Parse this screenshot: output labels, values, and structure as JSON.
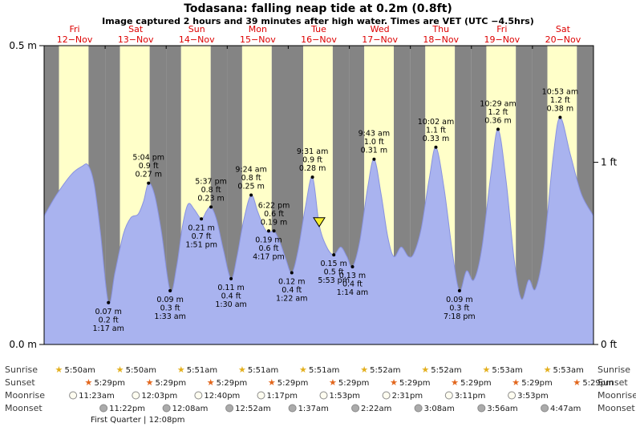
{
  "chart_data": {
    "type": "area",
    "title": "Todasana: falling  neap tide at 0.2m (0.8ft)",
    "subtitle": "Image captured 2 hours and 39 minutes after high water. Times are VET (UTC −4.5hrs)",
    "ylim_m": [
      0,
      0.5
    ],
    "axis": {
      "left": [
        {
          "m": 0.5,
          "label": "0.5 m"
        },
        {
          "m": 0.0,
          "label": "0.0 m"
        }
      ],
      "right": [
        {
          "ft": 1,
          "label": "1 ft"
        },
        {
          "ft": 0,
          "label": "0 ft"
        }
      ]
    },
    "days": [
      {
        "name": "Fri",
        "date": "12−Nov"
      },
      {
        "name": "Sat",
        "date": "13−Nov"
      },
      {
        "name": "Sun",
        "date": "14−Nov"
      },
      {
        "name": "Mon",
        "date": "15−Nov"
      },
      {
        "name": "Tue",
        "date": "16−Nov"
      },
      {
        "name": "Wed",
        "date": "17−Nov"
      },
      {
        "name": "Thu",
        "date": "18−Nov"
      },
      {
        "name": "Fri",
        "date": "19−Nov"
      },
      {
        "name": "Sat",
        "date": "20−Nov"
      }
    ],
    "tide_events": [
      {
        "kind": "low",
        "day": 1,
        "time": "1:17 am",
        "m": "0.07",
        "ft": "0.2"
      },
      {
        "kind": "high",
        "day": 1,
        "time": "5:04 pm",
        "m": "0.27",
        "ft": "0.9"
      },
      {
        "kind": "low",
        "day": 2,
        "time": "1:33 am",
        "m": "0.09",
        "ft": "0.3"
      },
      {
        "kind": "low",
        "day": 2,
        "time": "1:51 pm",
        "m": "0.21",
        "ft": "0.7"
      },
      {
        "kind": "high",
        "day": 2,
        "time": "5:37 pm",
        "m": "0.23",
        "ft": "0.8"
      },
      {
        "kind": "low",
        "day": 3,
        "time": "1:30 am",
        "m": "0.11",
        "ft": "0.4"
      },
      {
        "kind": "high",
        "day": 3,
        "time": "9:24 am",
        "m": "0.25",
        "ft": "0.8"
      },
      {
        "kind": "low",
        "day": 3,
        "time": "4:17 pm",
        "m": "0.19",
        "ft": "0.6"
      },
      {
        "kind": "high",
        "day": 3,
        "time": "6:22 pm",
        "m": "0.19",
        "ft": "0.6"
      },
      {
        "kind": "low",
        "day": 4,
        "time": "1:22 am",
        "m": "0.12",
        "ft": "0.4"
      },
      {
        "kind": "high",
        "day": 4,
        "time": "9:31 am",
        "m": "0.28",
        "ft": "0.9"
      },
      {
        "kind": "low",
        "day": 4,
        "time": "5:53 pm",
        "m": "0.15",
        "ft": "0.5"
      },
      {
        "kind": "low",
        "day": 5,
        "time": "1:14 am",
        "m": "0.13",
        "ft": "0.4"
      },
      {
        "kind": "high",
        "day": 5,
        "time": "9:43 am",
        "m": "0.31",
        "ft": "1.0"
      },
      {
        "kind": "high",
        "day": 6,
        "time": "10:02 am",
        "m": "0.33",
        "ft": "1.1"
      },
      {
        "kind": "low",
        "day": 6,
        "time": "7:18 pm",
        "m": "0.09",
        "ft": "0.3"
      },
      {
        "kind": "high",
        "day": 7,
        "time": "10:29 am",
        "m": "0.36",
        "ft": "1.2"
      },
      {
        "kind": "high",
        "day": 8,
        "time": "10:53 am",
        "m": "0.38",
        "ft": "1.2"
      }
    ],
    "curve_day_m": [
      [
        0.0,
        0.215
      ],
      [
        0.2,
        0.25
      ],
      [
        0.45,
        0.285
      ],
      [
        0.62,
        0.298
      ],
      [
        0.72,
        0.3
      ],
      [
        0.82,
        0.268
      ],
      [
        0.92,
        0.19
      ],
      [
        1.0535,
        0.07
      ],
      [
        1.16,
        0.12
      ],
      [
        1.3,
        0.185
      ],
      [
        1.42,
        0.212
      ],
      [
        1.54,
        0.218
      ],
      [
        1.63,
        0.24
      ],
      [
        1.7111,
        0.27
      ],
      [
        1.81,
        0.25
      ],
      [
        1.92,
        0.19
      ],
      [
        2.0646,
        0.09
      ],
      [
        2.17,
        0.13
      ],
      [
        2.27,
        0.2
      ],
      [
        2.36,
        0.235
      ],
      [
        2.46,
        0.226
      ],
      [
        2.5771,
        0.21
      ],
      [
        2.66,
        0.223
      ],
      [
        2.734,
        0.23
      ],
      [
        2.83,
        0.207
      ],
      [
        2.94,
        0.157
      ],
      [
        3.0625,
        0.11
      ],
      [
        3.16,
        0.147
      ],
      [
        3.27,
        0.208
      ],
      [
        3.3917,
        0.25
      ],
      [
        3.5,
        0.222
      ],
      [
        3.6,
        0.196
      ],
      [
        3.6785,
        0.187
      ],
      [
        3.7653,
        0.19
      ],
      [
        3.86,
        0.172
      ],
      [
        3.96,
        0.143
      ],
      [
        4.0569,
        0.12
      ],
      [
        4.16,
        0.157
      ],
      [
        4.28,
        0.23
      ],
      [
        4.3965,
        0.28
      ],
      [
        4.5069,
        0.2
      ],
      [
        4.63,
        0.163
      ],
      [
        4.7451,
        0.15
      ],
      [
        4.86,
        0.163
      ],
      [
        4.96,
        0.147
      ],
      [
        5.0514,
        0.13
      ],
      [
        5.17,
        0.172
      ],
      [
        5.3,
        0.262
      ],
      [
        5.4049,
        0.31
      ],
      [
        5.52,
        0.252
      ],
      [
        5.63,
        0.18
      ],
      [
        5.73,
        0.147
      ],
      [
        5.85,
        0.163
      ],
      [
        5.97,
        0.147
      ],
      [
        6.06,
        0.153
      ],
      [
        6.18,
        0.195
      ],
      [
        6.31,
        0.278
      ],
      [
        6.4181,
        0.33
      ],
      [
        6.55,
        0.263
      ],
      [
        6.69,
        0.153
      ],
      [
        6.8042,
        0.09
      ],
      [
        6.92,
        0.123
      ],
      [
        7.04,
        0.108
      ],
      [
        7.17,
        0.16
      ],
      [
        7.32,
        0.285
      ],
      [
        7.4368,
        0.36
      ],
      [
        7.57,
        0.272
      ],
      [
        7.7,
        0.142
      ],
      [
        7.82,
        0.076
      ],
      [
        7.94,
        0.108
      ],
      [
        8.05,
        0.093
      ],
      [
        8.19,
        0.163
      ],
      [
        8.34,
        0.315
      ],
      [
        8.4535,
        0.38
      ],
      [
        8.62,
        0.318
      ],
      [
        8.8,
        0.252
      ],
      [
        9.0,
        0.215
      ]
    ],
    "marker": {
      "day": 4,
      "hour": 12.17,
      "m": 0.2
    },
    "sun_moon": {
      "sunrise": {
        "label": "Sunrise",
        "events": [
          {
            "day": 0,
            "time": "5:50am"
          },
          {
            "day": 1,
            "time": "5:50am"
          },
          {
            "day": 2,
            "time": "5:51am"
          },
          {
            "day": 3,
            "time": "5:51am"
          },
          {
            "day": 4,
            "time": "5:51am"
          },
          {
            "day": 5,
            "time": "5:52am"
          },
          {
            "day": 6,
            "time": "5:52am"
          },
          {
            "day": 7,
            "time": "5:53am"
          },
          {
            "day": 8,
            "time": "5:53am"
          }
        ]
      },
      "sunset": {
        "label": "Sunset",
        "events": [
          {
            "day": 0,
            "time": "5:29pm"
          },
          {
            "day": 1,
            "time": "5:29pm"
          },
          {
            "day": 2,
            "time": "5:29pm"
          },
          {
            "day": 3,
            "time": "5:29pm"
          },
          {
            "day": 4,
            "time": "5:29pm"
          },
          {
            "day": 5,
            "time": "5:29pm"
          },
          {
            "day": 6,
            "time": "5:29pm"
          },
          {
            "day": 7,
            "time": "5:29pm"
          },
          {
            "day": 8,
            "time": "5:29pm"
          }
        ]
      },
      "moonrise": {
        "label": "Moonrise",
        "events": [
          {
            "day": 0,
            "time": "11:23am"
          },
          {
            "day": 1,
            "time": "12:03pm"
          },
          {
            "day": 2,
            "time": "12:40pm"
          },
          {
            "day": 3,
            "time": "1:17pm"
          },
          {
            "day": 4,
            "time": "1:53pm"
          },
          {
            "day": 5,
            "time": "2:31pm"
          },
          {
            "day": 6,
            "time": "3:11pm"
          },
          {
            "day": 7,
            "time": "3:53pm"
          }
        ]
      },
      "moonset": {
        "label": "Moonset",
        "events": [
          {
            "day": 0,
            "time": "11:22pm"
          },
          {
            "day": 2,
            "time": "12:08am"
          },
          {
            "day": 3,
            "time": "12:52am"
          },
          {
            "day": 4,
            "time": "1:37am"
          },
          {
            "day": 5,
            "time": "2:22am"
          },
          {
            "day": 6,
            "time": "3:08am"
          },
          {
            "day": 7,
            "time": "3:56am"
          },
          {
            "day": 8,
            "time": "4:47am"
          }
        ]
      },
      "moon_phase": "First Quarter | 12:08pm"
    },
    "colors": {
      "night_band": "#848484",
      "day_band": "#ffffc9",
      "tide_fill": "#a9b3ef",
      "tide_stroke": "#8892e0",
      "day_label": "#dd0000",
      "marker_fill": "#f6ef2e",
      "sunrise_icon": "#e3af1d",
      "sunset_icon": "#e2661c",
      "moonrise_fill": "#fffdf0",
      "moonset_fill": "#ababab"
    }
  }
}
